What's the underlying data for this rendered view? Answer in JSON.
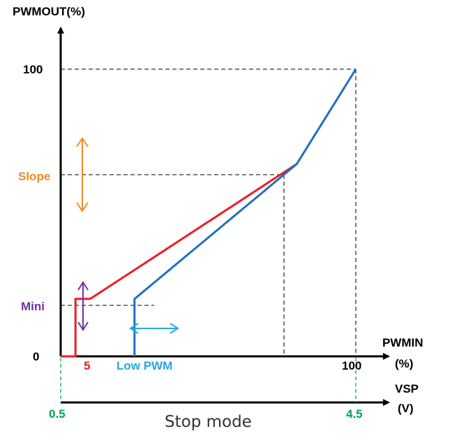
{
  "colors": {
    "axis": "#000000",
    "red": "#ee1c24",
    "blue": "#1f6fc2",
    "cyan": "#2aa6e0",
    "orange": "#f08a24",
    "purple": "#7030a0",
    "green": "#00a650",
    "dashed": "#333333"
  },
  "chart_data": {
    "type": "line",
    "xlabel": "PWMIN",
    "xlabel_unit": "(%)",
    "ylabel": "PWMOUT(%)",
    "vsp_label": "VSP",
    "vsp_unit": "(V)",
    "y_ticks": {
      "zero": "0",
      "mini": "Mini",
      "slope": "Slope",
      "hundred": "100"
    },
    "x_ticks": {
      "five": "5",
      "hundred": "100",
      "low_pwm": "Low PWM"
    },
    "vsp_ticks": {
      "start": "0.5",
      "end": "4.5"
    },
    "footer_label": "Stop mode",
    "series": [
      {
        "color": "red",
        "points": [
          [
            0,
            0
          ],
          [
            5,
            0
          ],
          [
            5,
            20
          ],
          [
            10,
            20
          ],
          [
            80,
            67
          ]
        ]
      },
      {
        "color": "blue",
        "points": [
          [
            25,
            0
          ],
          [
            25,
            20
          ],
          [
            80,
            67
          ],
          [
            100,
            100
          ]
        ]
      }
    ],
    "reference": {
      "mini_y": 20,
      "slope_y": 67,
      "mid_x": 80
    }
  }
}
